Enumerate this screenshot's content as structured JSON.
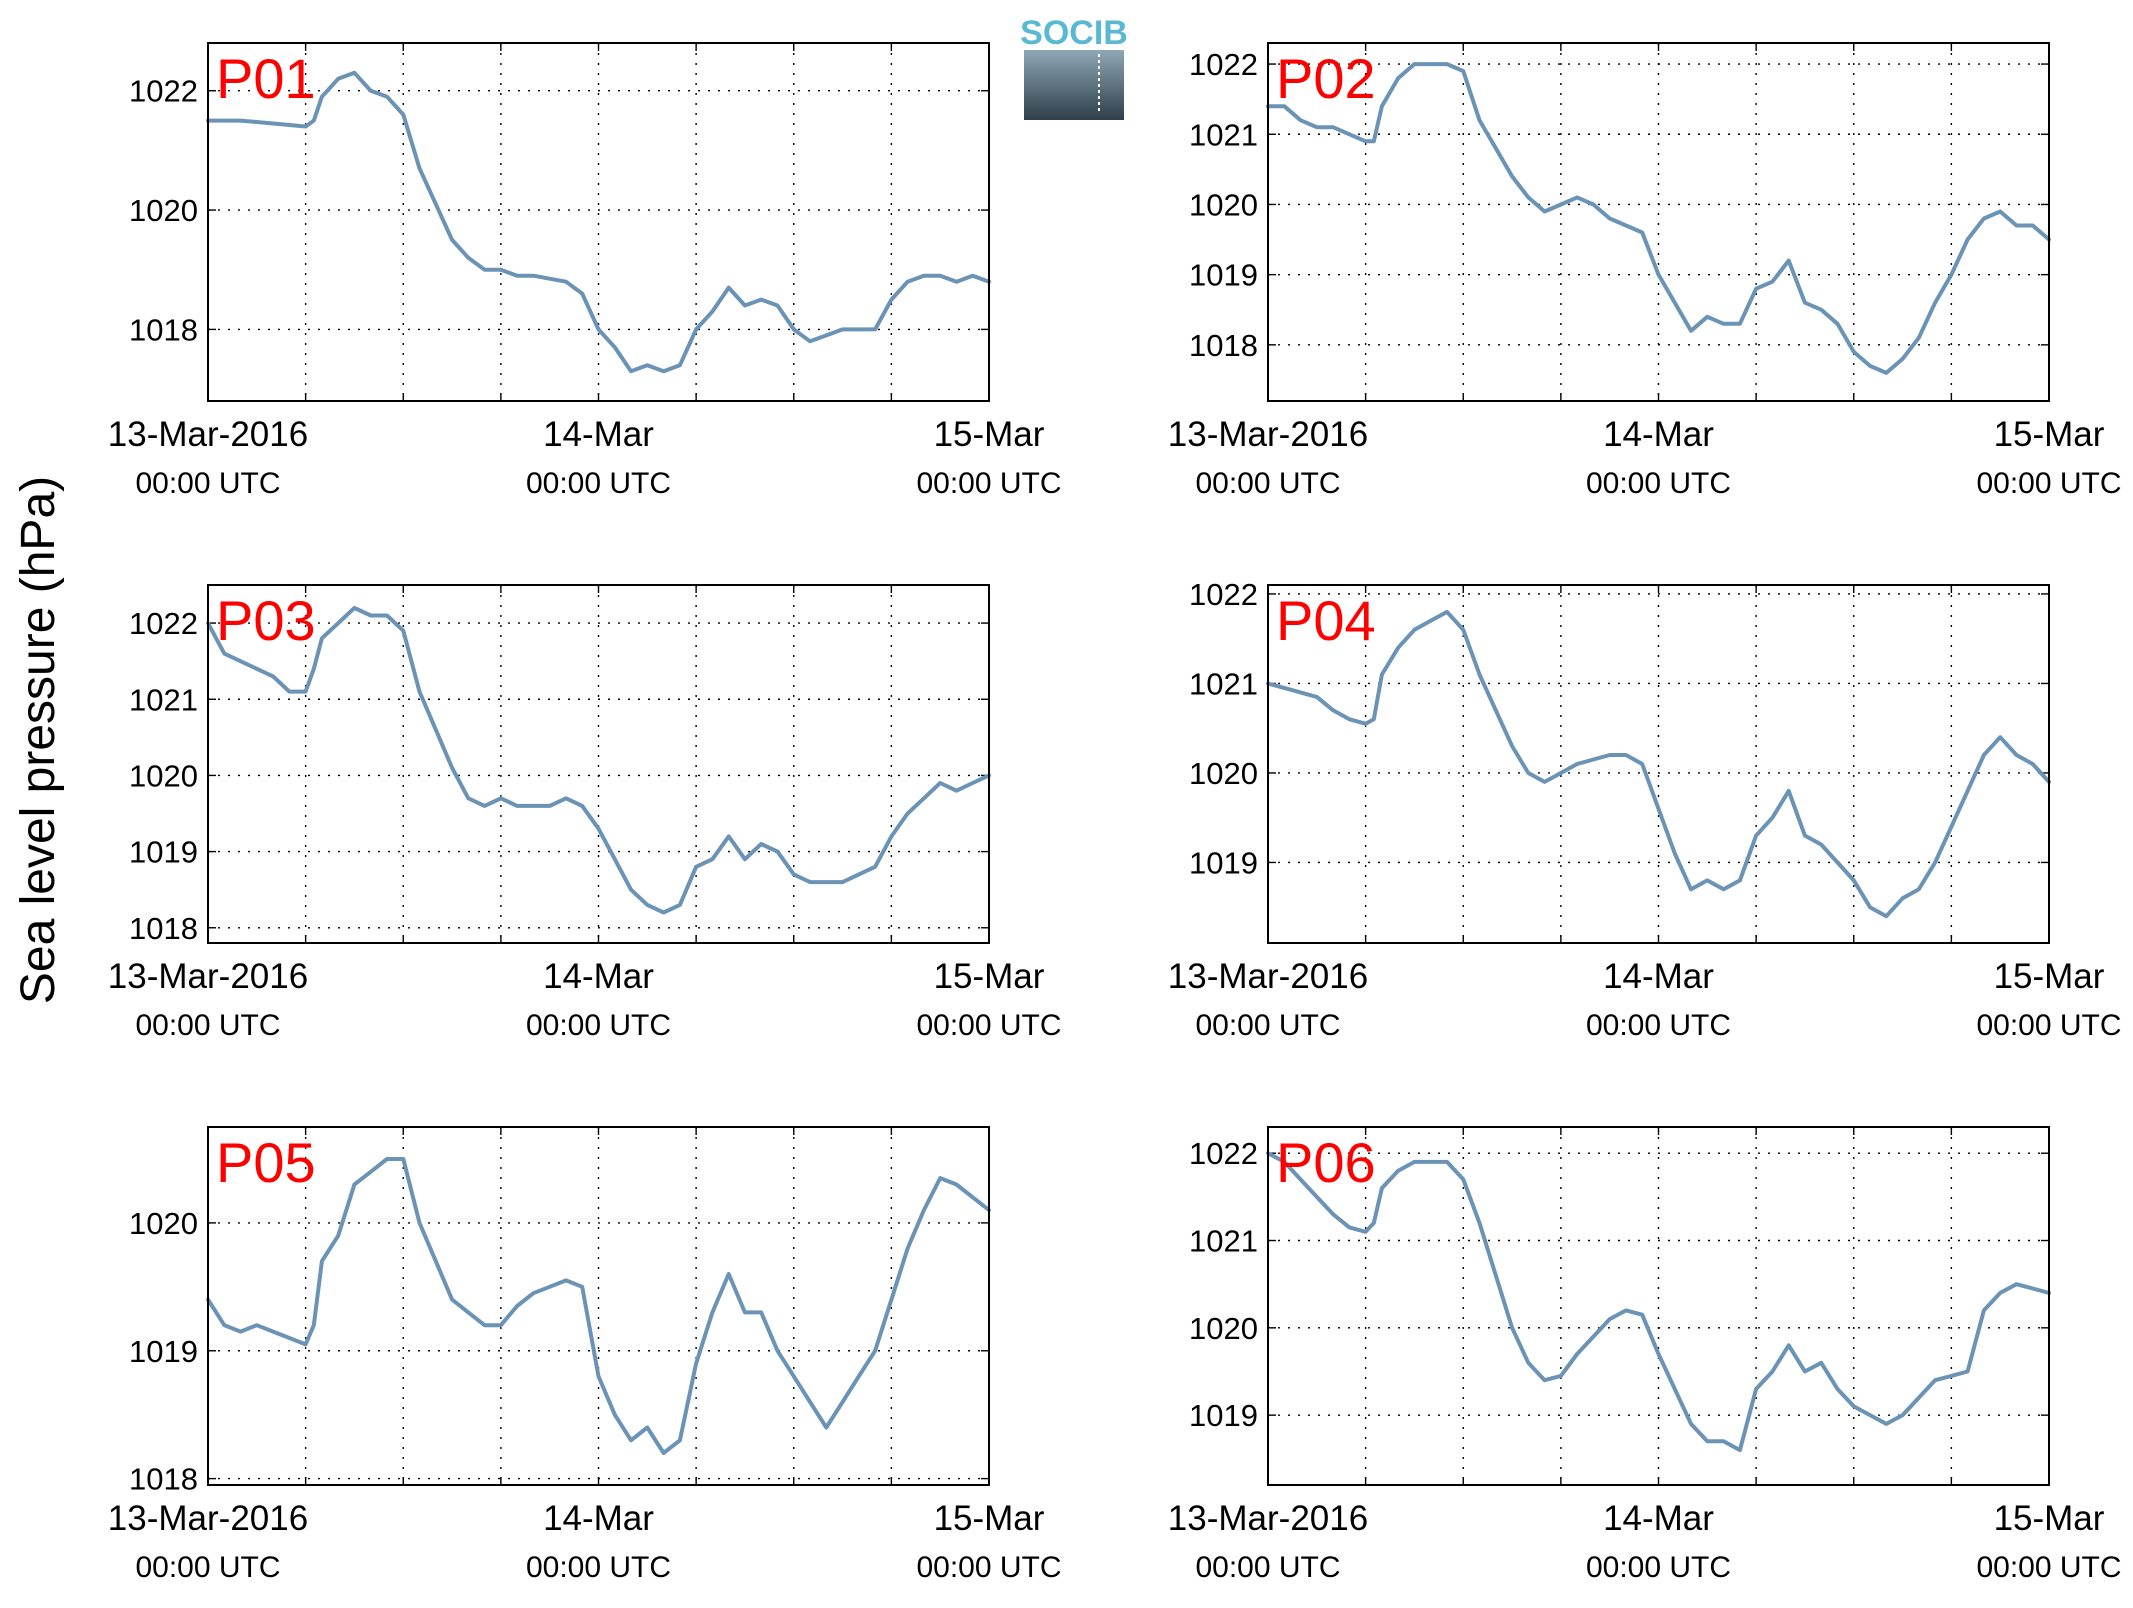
{
  "figure": {
    "ylabel": "Sea level pressure (hPa)",
    "logo_text": "SOCIB",
    "line_color": "#6a93b6",
    "label_color": "#ff0000"
  },
  "chart_data": [
    {
      "type": "line",
      "label": "P01",
      "ylim": [
        1016.8,
        1022.8
      ],
      "yticks": [
        1018,
        1020,
        1022
      ],
      "xticklabels": [
        {
          "x": 0,
          "line1": "13-Mar-2016",
          "line2": "00:00 UTC"
        },
        {
          "x": 24,
          "line1": "14-Mar",
          "line2": "00:00 UTC"
        },
        {
          "x": 48,
          "line1": "15-Mar",
          "line2": "00:00 UTC"
        }
      ],
      "x": [
        0,
        2,
        4,
        6,
        6.5,
        7,
        8,
        9,
        10,
        11,
        12,
        13,
        14,
        15,
        16,
        17,
        18,
        19,
        20,
        21,
        22,
        23,
        24,
        25,
        26,
        27,
        28,
        29,
        30,
        31,
        32,
        33,
        34,
        35,
        36,
        37,
        38,
        39,
        40,
        41,
        42,
        43,
        44,
        45,
        46,
        47,
        48
      ],
      "y": [
        1021.5,
        1021.5,
        1021.45,
        1021.4,
        1021.5,
        1021.9,
        1022.2,
        1022.3,
        1022.0,
        1021.9,
        1021.6,
        1020.7,
        1020.1,
        1019.5,
        1019.2,
        1019.0,
        1019.0,
        1018.9,
        1018.9,
        1018.85,
        1018.8,
        1018.6,
        1018.0,
        1017.7,
        1017.3,
        1017.4,
        1017.3,
        1017.4,
        1018.0,
        1018.3,
        1018.7,
        1018.4,
        1018.5,
        1018.4,
        1018.0,
        1017.8,
        1017.9,
        1018.0,
        1018.0,
        1018.0,
        1018.5,
        1018.8,
        1018.9,
        1018.9,
        1018.8,
        1018.9,
        1018.8
      ]
    },
    {
      "type": "line",
      "label": "P02",
      "ylim": [
        1017.2,
        1022.3
      ],
      "yticks": [
        1018,
        1019,
        1020,
        1021,
        1022
      ],
      "xticklabels": [
        {
          "x": 0,
          "line1": "13-Mar-2016",
          "line2": "00:00 UTC"
        },
        {
          "x": 24,
          "line1": "14-Mar",
          "line2": "00:00 UTC"
        },
        {
          "x": 48,
          "line1": "15-Mar",
          "line2": "00:00 UTC"
        }
      ],
      "x": [
        0,
        1,
        2,
        3,
        4,
        5,
        6,
        6.5,
        7,
        8,
        9,
        10,
        11,
        12,
        13,
        14,
        15,
        16,
        17,
        18,
        19,
        20,
        21,
        22,
        23,
        24,
        25,
        26,
        27,
        28,
        29,
        30,
        31,
        32,
        33,
        34,
        35,
        36,
        37,
        38,
        39,
        40,
        41,
        42,
        43,
        44,
        45,
        46,
        47,
        48
      ],
      "y": [
        1021.4,
        1021.4,
        1021.2,
        1021.1,
        1021.1,
        1021.0,
        1020.9,
        1020.9,
        1021.4,
        1021.8,
        1022.0,
        1022.0,
        1022.0,
        1021.9,
        1021.2,
        1020.8,
        1020.4,
        1020.1,
        1019.9,
        1020.0,
        1020.1,
        1020.0,
        1019.8,
        1019.7,
        1019.6,
        1019.0,
        1018.6,
        1018.2,
        1018.4,
        1018.3,
        1018.3,
        1018.8,
        1018.9,
        1019.2,
        1018.6,
        1018.5,
        1018.3,
        1017.9,
        1017.7,
        1017.6,
        1017.8,
        1018.1,
        1018.6,
        1019.0,
        1019.5,
        1019.8,
        1019.9,
        1019.7,
        1019.7,
        1019.5
      ]
    },
    {
      "type": "line",
      "label": "P03",
      "ylim": [
        1017.8,
        1022.5
      ],
      "yticks": [
        1018,
        1019,
        1020,
        1021,
        1022
      ],
      "xticklabels": [
        {
          "x": 0,
          "line1": "13-Mar-2016",
          "line2": "00:00 UTC"
        },
        {
          "x": 24,
          "line1": "14-Mar",
          "line2": "00:00 UTC"
        },
        {
          "x": 48,
          "line1": "15-Mar",
          "line2": "00:00 UTC"
        }
      ],
      "x": [
        0,
        1,
        2,
        3,
        4,
        5,
        6,
        6.5,
        7,
        8,
        9,
        10,
        11,
        12,
        13,
        14,
        15,
        16,
        17,
        18,
        19,
        20,
        21,
        22,
        23,
        24,
        25,
        26,
        27,
        28,
        29,
        30,
        31,
        32,
        33,
        34,
        35,
        36,
        37,
        38,
        39,
        40,
        41,
        42,
        43,
        44,
        45,
        46,
        47,
        48
      ],
      "y": [
        1022.0,
        1021.6,
        1021.5,
        1021.4,
        1021.3,
        1021.1,
        1021.1,
        1021.4,
        1021.8,
        1022.0,
        1022.2,
        1022.1,
        1022.1,
        1021.9,
        1021.1,
        1020.6,
        1020.1,
        1019.7,
        1019.6,
        1019.7,
        1019.6,
        1019.6,
        1019.6,
        1019.7,
        1019.6,
        1019.3,
        1018.9,
        1018.5,
        1018.3,
        1018.2,
        1018.3,
        1018.8,
        1018.9,
        1019.2,
        1018.9,
        1019.1,
        1019.0,
        1018.7,
        1018.6,
        1018.6,
        1018.6,
        1018.7,
        1018.8,
        1019.2,
        1019.5,
        1019.7,
        1019.9,
        1019.8,
        1019.9,
        1020.0
      ]
    },
    {
      "type": "line",
      "label": "P04",
      "ylim": [
        1018.1,
        1022.1
      ],
      "yticks": [
        1019,
        1020,
        1021,
        1022
      ],
      "xticklabels": [
        {
          "x": 0,
          "line1": "13-Mar-2016",
          "line2": "00:00 UTC"
        },
        {
          "x": 24,
          "line1": "14-Mar",
          "line2": "00:00 UTC"
        },
        {
          "x": 48,
          "line1": "15-Mar",
          "line2": "00:00 UTC"
        }
      ],
      "x": [
        0,
        1,
        2,
        3,
        4,
        5,
        6,
        6.5,
        7,
        8,
        9,
        10,
        11,
        12,
        13,
        14,
        15,
        16,
        17,
        18,
        19,
        20,
        21,
        22,
        23,
        24,
        25,
        26,
        27,
        28,
        29,
        30,
        31,
        32,
        33,
        34,
        35,
        36,
        37,
        38,
        39,
        40,
        41,
        42,
        43,
        44,
        45,
        46,
        47,
        48
      ],
      "y": [
        1021.0,
        1020.95,
        1020.9,
        1020.85,
        1020.7,
        1020.6,
        1020.55,
        1020.6,
        1021.1,
        1021.4,
        1021.6,
        1021.7,
        1021.8,
        1021.6,
        1021.1,
        1020.7,
        1020.3,
        1020.0,
        1019.9,
        1020.0,
        1020.1,
        1020.15,
        1020.2,
        1020.2,
        1020.1,
        1019.6,
        1019.1,
        1018.7,
        1018.8,
        1018.7,
        1018.8,
        1019.3,
        1019.5,
        1019.8,
        1019.3,
        1019.2,
        1019.0,
        1018.8,
        1018.5,
        1018.4,
        1018.6,
        1018.7,
        1019.0,
        1019.4,
        1019.8,
        1020.2,
        1020.4,
        1020.2,
        1020.1,
        1019.9
      ]
    },
    {
      "type": "line",
      "label": "P05",
      "ylim": [
        1017.95,
        1020.75
      ],
      "yticks": [
        1018,
        1019,
        1020
      ],
      "xticklabels": [
        {
          "x": 0,
          "line1": "13-Mar-2016",
          "line2": "00:00 UTC"
        },
        {
          "x": 24,
          "line1": "14-Mar",
          "line2": "00:00 UTC"
        },
        {
          "x": 48,
          "line1": "15-Mar",
          "line2": "00:00 UTC"
        }
      ],
      "x": [
        0,
        1,
        2,
        3,
        4,
        5,
        6,
        6.5,
        7,
        8,
        9,
        10,
        11,
        12,
        13,
        14,
        15,
        16,
        17,
        18,
        19,
        20,
        21,
        22,
        23,
        24,
        25,
        26,
        27,
        28,
        29,
        30,
        31,
        32,
        33,
        34,
        35,
        36,
        37,
        38,
        39,
        40,
        41,
        42,
        43,
        44,
        45,
        46,
        47,
        48
      ],
      "y": [
        1019.4,
        1019.2,
        1019.15,
        1019.2,
        1019.15,
        1019.1,
        1019.05,
        1019.2,
        1019.7,
        1019.9,
        1020.3,
        1020.4,
        1020.5,
        1020.5,
        1020.0,
        1019.7,
        1019.4,
        1019.3,
        1019.2,
        1019.2,
        1019.35,
        1019.45,
        1019.5,
        1019.55,
        1019.5,
        1018.8,
        1018.5,
        1018.3,
        1018.4,
        1018.2,
        1018.3,
        1018.9,
        1019.3,
        1019.6,
        1019.3,
        1019.3,
        1019.0,
        1018.8,
        1018.6,
        1018.4,
        1018.6,
        1018.8,
        1019.0,
        1019.4,
        1019.8,
        1020.1,
        1020.35,
        1020.3,
        1020.2,
        1020.1
      ]
    },
    {
      "type": "line",
      "label": "P06",
      "ylim": [
        1018.2,
        1022.3
      ],
      "yticks": [
        1019,
        1020,
        1021,
        1022
      ],
      "xticklabels": [
        {
          "x": 0,
          "line1": "13-Mar-2016",
          "line2": "00:00 UTC"
        },
        {
          "x": 24,
          "line1": "14-Mar",
          "line2": "00:00 UTC"
        },
        {
          "x": 48,
          "line1": "15-Mar",
          "line2": "00:00 UTC"
        }
      ],
      "x": [
        0,
        1,
        2,
        3,
        4,
        5,
        6,
        6.5,
        7,
        8,
        9,
        10,
        11,
        12,
        13,
        14,
        15,
        16,
        17,
        18,
        19,
        20,
        21,
        22,
        23,
        24,
        25,
        26,
        27,
        28,
        29,
        30,
        31,
        32,
        33,
        34,
        35,
        36,
        37,
        38,
        39,
        40,
        41,
        42,
        43,
        44,
        45,
        46,
        47,
        48
      ],
      "y": [
        1022.0,
        1021.9,
        1021.7,
        1021.5,
        1021.3,
        1021.15,
        1021.1,
        1021.2,
        1021.6,
        1021.8,
        1021.9,
        1021.9,
        1021.9,
        1021.7,
        1021.2,
        1020.6,
        1020.0,
        1019.6,
        1019.4,
        1019.45,
        1019.7,
        1019.9,
        1020.1,
        1020.2,
        1020.15,
        1019.7,
        1019.3,
        1018.9,
        1018.7,
        1018.7,
        1018.6,
        1019.3,
        1019.5,
        1019.8,
        1019.5,
        1019.6,
        1019.3,
        1019.1,
        1019.0,
        1018.9,
        1019.0,
        1019.2,
        1019.4,
        1019.45,
        1019.5,
        1020.2,
        1020.4,
        1020.5,
        1020.45,
        1020.4
      ]
    }
  ]
}
